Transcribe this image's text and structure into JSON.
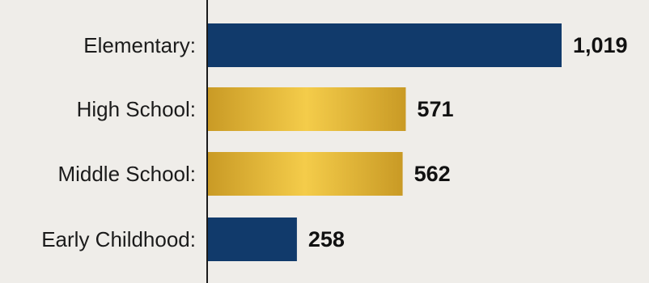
{
  "chart_data": {
    "type": "bar",
    "orientation": "horizontal",
    "categories": [
      "Elementary:",
      "High School:",
      "Middle School:",
      "Early Childhood:"
    ],
    "values": [
      1019,
      571,
      562,
      258
    ],
    "value_labels": [
      "1,019",
      "571",
      "562",
      "258"
    ],
    "bar_styles": [
      "navy",
      "gold",
      "gold",
      "navy"
    ],
    "colors": {
      "navy": "#113a6b",
      "gold_dark": "#c99a25",
      "gold_light": "#f4cc4a",
      "axis": "#1b1b1b",
      "background": "#efede9"
    },
    "xlim": [
      0,
      1019
    ],
    "grid": false,
    "legend": "none"
  }
}
